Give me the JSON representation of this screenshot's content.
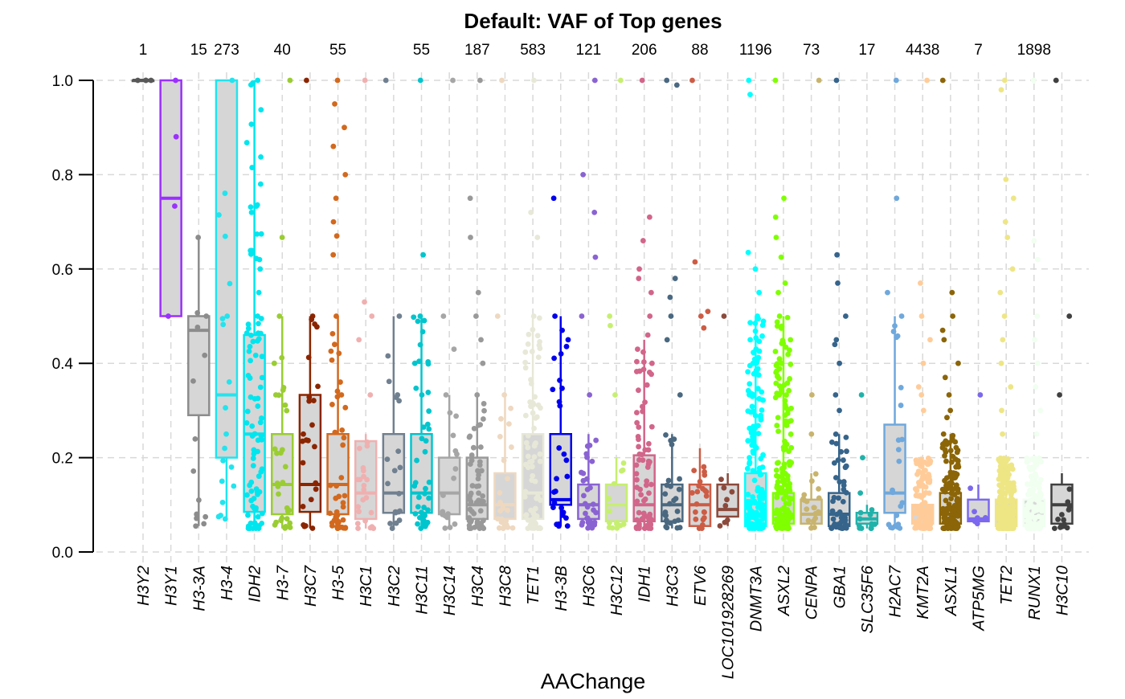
{
  "chart_data": {
    "type": "box",
    "title": "Default: VAF of Top genes",
    "xlabel": "AAChange",
    "ylabel": "",
    "ylim": [
      0,
      1
    ],
    "yticks": [
      "0.0",
      "0.2",
      "0.4",
      "0.6",
      "0.8",
      "1.0"
    ],
    "grid": true,
    "categories": [
      {
        "name": "H3Y2",
        "count": "1",
        "color": "#595959",
        "q1": 1.0,
        "median": 1.0,
        "q3": 1.0,
        "lower": 1.0,
        "upper": 1.0,
        "n_pts": 3,
        "extra": [
          1.0
        ]
      },
      {
        "name": "H3Y1",
        "count": "",
        "color": "#9b30ff",
        "q1": 0.5,
        "median": 0.75,
        "q3": 1.0,
        "lower": 0.5,
        "upper": 1.0,
        "n_pts": 2,
        "extra": [
          0.5,
          1.0
        ]
      },
      {
        "name": "H3-3A",
        "count": "15",
        "color": "#8c8c8c",
        "q1": 0.29,
        "median": 0.47,
        "q3": 0.5,
        "lower": 0.055,
        "upper": 0.667,
        "n_pts": 10,
        "extra": [
          0.055,
          0.08,
          0.11,
          0.5,
          0.667
        ]
      },
      {
        "name": "H3-4",
        "count": "273",
        "color": "#22e4ee",
        "q1": 0.2,
        "median": 0.333,
        "q3": 1.0,
        "lower": 0.07,
        "upper": 1.0,
        "n_pts": 14,
        "extra": [
          0.07,
          0.15,
          0.18,
          0.25,
          0.5,
          1.0
        ]
      },
      {
        "name": "IDH2",
        "count": "",
        "color": "#00e5ee",
        "q1": 0.085,
        "median": 0.25,
        "q3": 0.46,
        "lower": 0.05,
        "upper": 1.0,
        "n_pts": 90,
        "extra": [
          0.72,
          0.6,
          0.55,
          0.5,
          1.0
        ]
      },
      {
        "name": "H3-7",
        "count": "40",
        "color": "#9acd32",
        "q1": 0.08,
        "median": 0.143,
        "q3": 0.25,
        "lower": 0.05,
        "upper": 0.5,
        "n_pts": 28,
        "extra": [
          0.667,
          0.5,
          0.4,
          0.333,
          1.0
        ]
      },
      {
        "name": "H3C7",
        "count": "",
        "color": "#8b2500",
        "q1": 0.085,
        "median": 0.143,
        "q3": 0.333,
        "lower": 0.05,
        "upper": 0.5,
        "n_pts": 22,
        "extra": [
          0.5,
          0.25,
          1.0
        ]
      },
      {
        "name": "H3-5",
        "count": "55",
        "color": "#d2691e",
        "q1": 0.08,
        "median": 0.143,
        "q3": 0.25,
        "lower": 0.05,
        "upper": 0.5,
        "n_pts": 45,
        "extra": [
          0.95,
          0.9,
          0.86,
          0.8,
          0.75,
          0.7,
          0.67,
          0.63,
          0.5,
          0.333,
          1.0
        ]
      },
      {
        "name": "H3C1",
        "count": "",
        "color": "#f0b0b0",
        "q1": 0.07,
        "median": 0.125,
        "q3": 0.235,
        "lower": 0.05,
        "upper": 0.25,
        "n_pts": 22,
        "extra": [
          0.53,
          0.5,
          0.45,
          0.333,
          1.0
        ]
      },
      {
        "name": "H3C2",
        "count": "",
        "color": "#708090",
        "q1": 0.083,
        "median": 0.125,
        "q3": 0.25,
        "lower": 0.05,
        "upper": 0.5,
        "n_pts": 18,
        "extra": [
          0.5,
          0.333,
          1.0
        ]
      },
      {
        "name": "H3C11",
        "count": "55",
        "color": "#00c5cd",
        "q1": 0.083,
        "median": 0.125,
        "q3": 0.25,
        "lower": 0.05,
        "upper": 0.5,
        "n_pts": 40,
        "extra": [
          0.63,
          0.5,
          0.4,
          0.333,
          1.0
        ]
      },
      {
        "name": "H3C14",
        "count": "",
        "color": "#a6a6a6",
        "q1": 0.08,
        "median": 0.125,
        "q3": 0.2,
        "lower": 0.05,
        "upper": 0.333,
        "n_pts": 16,
        "extra": [
          0.5,
          0.43,
          0.333,
          1.0
        ]
      },
      {
        "name": "H3C4",
        "count": "187",
        "color": "#999999",
        "q1": 0.07,
        "median": 0.1,
        "q3": 0.2,
        "lower": 0.05,
        "upper": 0.333,
        "n_pts": 55,
        "extra": [
          0.75,
          0.667,
          0.55,
          0.5,
          0.45,
          0.4,
          0.333,
          1.0
        ]
      },
      {
        "name": "H3C8",
        "count": "",
        "color": "#eed8c0",
        "q1": 0.07,
        "median": 0.1,
        "q3": 0.167,
        "lower": 0.05,
        "upper": 0.333,
        "n_pts": 22,
        "extra": [
          0.5,
          0.333,
          1.0
        ]
      },
      {
        "name": "TET1",
        "count": "583",
        "color": "#e8e8d8",
        "q1": 0.07,
        "median": 0.125,
        "q3": 0.25,
        "lower": 0.05,
        "upper": 0.5,
        "n_pts": 80,
        "extra": [
          0.72,
          0.667,
          0.5,
          1.0
        ]
      },
      {
        "name": "H3-3B",
        "count": "",
        "color": "#0000ee",
        "q1": 0.1,
        "median": 0.111,
        "q3": 0.25,
        "lower": 0.055,
        "upper": 0.5,
        "n_pts": 25,
        "extra": [
          0.75,
          0.5,
          0.47,
          0.45
        ]
      },
      {
        "name": "H3C6",
        "count": "121",
        "color": "#8a63d2",
        "q1": 0.07,
        "median": 0.1,
        "q3": 0.143,
        "lower": 0.05,
        "upper": 0.25,
        "n_pts": 30,
        "extra": [
          0.8,
          0.72,
          0.625,
          0.5,
          0.333,
          1.0
        ]
      },
      {
        "name": "H3C12",
        "count": "",
        "color": "#c6ef70",
        "q1": 0.065,
        "median": 0.1,
        "q3": 0.143,
        "lower": 0.05,
        "upper": 0.2,
        "n_pts": 14,
        "extra": [
          0.5,
          0.48,
          0.333,
          1.0
        ]
      },
      {
        "name": "IDH1",
        "count": "206",
        "color": "#d2658a",
        "q1": 0.065,
        "median": 0.1,
        "q3": 0.205,
        "lower": 0.05,
        "upper": 0.45,
        "n_pts": 70,
        "extra": [
          0.71,
          0.66,
          0.6,
          0.58,
          0.55,
          0.5,
          0.46,
          0.43,
          0.4,
          1.0
        ]
      },
      {
        "name": "H3C3",
        "count": "",
        "color": "#4a6880",
        "q1": 0.065,
        "median": 0.1,
        "q3": 0.143,
        "lower": 0.05,
        "upper": 0.25,
        "n_pts": 26,
        "extra": [
          0.58,
          0.54,
          0.5,
          0.45,
          0.333,
          1.0,
          0.99
        ]
      },
      {
        "name": "ETV6",
        "count": "88",
        "color": "#cd5c45",
        "q1": 0.055,
        "median": 0.1,
        "q3": 0.143,
        "lower": 0.05,
        "upper": 0.22,
        "n_pts": 22,
        "extra": [
          0.615,
          0.51,
          0.5,
          0.475,
          1.0
        ]
      },
      {
        "name": "LOC101928269",
        "count": "",
        "color": "#8b4a3c",
        "q1": 0.075,
        "median": 0.09,
        "q3": 0.143,
        "lower": 0.055,
        "upper": 0.167,
        "n_pts": 8,
        "extra": [
          0.5
        ]
      },
      {
        "name": "DNMT3A",
        "count": "1196",
        "color": "#00ffff",
        "q1": 0.055,
        "median": 0.08,
        "q3": 0.167,
        "lower": 0.05,
        "upper": 0.5,
        "n_pts": 160,
        "extra": [
          0.635,
          0.6,
          0.55,
          0.5,
          0.45,
          0.43,
          0.4,
          1.0,
          0.97
        ]
      },
      {
        "name": "ASXL2",
        "count": "",
        "color": "#7fff00",
        "q1": 0.06,
        "median": 0.08,
        "q3": 0.125,
        "lower": 0.05,
        "upper": 0.5,
        "n_pts": 160,
        "extra": [
          0.75,
          0.71,
          0.667,
          0.625,
          0.57,
          0.55,
          0.5,
          0.45,
          0.4,
          0.333,
          1.0
        ]
      },
      {
        "name": "CENPA",
        "count": "73",
        "color": "#c8b46e",
        "q1": 0.06,
        "median": 0.08,
        "q3": 0.111,
        "lower": 0.05,
        "upper": 0.167,
        "n_pts": 18,
        "extra": [
          0.333,
          0.25,
          1.0
        ]
      },
      {
        "name": "GBA1",
        "count": "",
        "color": "#36648b",
        "q1": 0.055,
        "median": 0.08,
        "q3": 0.125,
        "lower": 0.05,
        "upper": 0.25,
        "n_pts": 50,
        "extra": [
          0.63,
          0.57,
          0.5,
          0.45,
          0.44,
          0.4,
          0.333,
          0.3,
          1.0
        ]
      },
      {
        "name": "SLC35F6",
        "count": "17",
        "color": "#20b2aa",
        "q1": 0.06,
        "median": 0.07,
        "q3": 0.083,
        "lower": 0.05,
        "upper": 0.1,
        "n_pts": 12,
        "extra": [
          0.333,
          0.2,
          0.125
        ]
      },
      {
        "name": "H2AC7",
        "count": "",
        "color": "#6fa8dc",
        "q1": 0.083,
        "median": 0.125,
        "q3": 0.27,
        "lower": 0.05,
        "upper": 0.5,
        "n_pts": 22,
        "extra": [
          0.75,
          0.55,
          0.5,
          1.0
        ]
      },
      {
        "name": "KMT2A",
        "count": "4438",
        "color": "#ffcc99",
        "q1": 0.06,
        "median": 0.08,
        "q3": 0.1,
        "lower": 0.05,
        "upper": 0.2,
        "n_pts": 120,
        "extra": [
          0.57,
          0.5,
          0.45,
          0.4,
          0.35,
          0.333,
          0.3,
          1.0
        ]
      },
      {
        "name": "ASXL1",
        "count": "",
        "color": "#8b6508",
        "q1": 0.06,
        "median": 0.08,
        "q3": 0.125,
        "lower": 0.05,
        "upper": 0.25,
        "n_pts": 130,
        "extra": [
          0.55,
          0.5,
          0.47,
          0.45,
          0.4,
          0.37,
          0.333,
          0.3,
          0.285,
          0.25,
          1.0
        ]
      },
      {
        "name": "ATP5MG",
        "count": "7",
        "color": "#7b68ee",
        "q1": 0.065,
        "median": 0.07,
        "q3": 0.111,
        "lower": 0.06,
        "upper": 0.143,
        "n_pts": 7,
        "extra": [
          0.333
        ]
      },
      {
        "name": "TET2",
        "count": "",
        "color": "#eee685",
        "q1": 0.055,
        "median": 0.08,
        "q3": 0.111,
        "lower": 0.05,
        "upper": 0.2,
        "n_pts": 260,
        "extra": [
          0.79,
          0.75,
          0.7,
          0.667,
          0.6,
          0.55,
          0.5,
          0.45,
          0.4,
          0.35,
          0.3,
          0.25,
          1.0,
          0.98
        ]
      },
      {
        "name": "RUNX1",
        "count": "1898",
        "color": "#f0fff0",
        "q1": 0.055,
        "median": 0.075,
        "q3": 0.111,
        "lower": 0.05,
        "upper": 0.2,
        "n_pts": 120,
        "extra": [
          0.66,
          0.62,
          0.5,
          0.45,
          0.4,
          0.35,
          0.3,
          0.25,
          1.0
        ]
      },
      {
        "name": "H3C10",
        "count": "",
        "color": "#404040",
        "q1": 0.06,
        "median": 0.1,
        "q3": 0.143,
        "lower": 0.05,
        "upper": 0.167,
        "n_pts": 14,
        "extra": [
          0.5,
          0.333,
          1.0
        ]
      }
    ]
  }
}
